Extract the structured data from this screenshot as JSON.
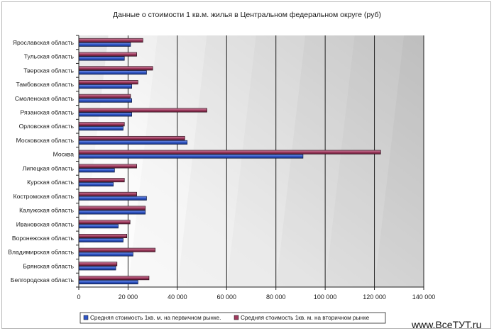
{
  "chart_data": {
    "type": "bar",
    "orientation": "horizontal",
    "title": "Данные о стоимости 1 кв.м. жилья в Центральном федеральном округе (руб)",
    "categories": [
      "Ярославская область",
      "Тульская область",
      "Тверская область",
      "Тамбовская область",
      "Смоленская область",
      "Рязанская область",
      "Орловская область",
      "Московская область",
      "Москва",
      "Липецкая область",
      "Курская область",
      "Костромская область",
      "Калужская область",
      "Ивановская область",
      "Воронежская область",
      "Владимирская область",
      "Брянская область",
      "Белгородская область"
    ],
    "series": [
      {
        "name": "Средняя стоимость 1кв. м. на первичном рынке.",
        "color": "#2f56c8",
        "values": [
          21000,
          18500,
          27500,
          21500,
          21500,
          21500,
          18000,
          44000,
          91000,
          14500,
          14000,
          27500,
          27000,
          16000,
          18000,
          22000,
          15000,
          24000
        ]
      },
      {
        "name": "Средняя стоимость 1кв. м. на вторичном рынке",
        "color": "#a03a5e",
        "values": [
          26000,
          23500,
          30000,
          24000,
          21000,
          52000,
          18500,
          43000,
          122500,
          23500,
          18500,
          23500,
          27000,
          20800,
          19500,
          31000,
          15500,
          28500
        ]
      }
    ],
    "x_ticks": [
      "0",
      "20 000",
      "40 000",
      "60 000",
      "80 000",
      "100 000",
      "120 000",
      "140 000"
    ],
    "xlim": [
      0,
      140000
    ],
    "grid": true,
    "legend_position": "bottom"
  },
  "watermark": "www.ВсеТУТ.ru"
}
